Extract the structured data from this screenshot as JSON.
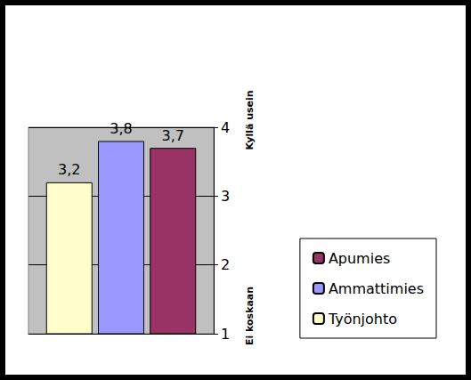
{
  "chart_data": {
    "type": "bar",
    "categories": [
      null
    ],
    "series": [
      {
        "name": "Työnjohto",
        "color": "#FFFFCC",
        "values": [
          3.2
        ],
        "value_labels": [
          "3,2"
        ]
      },
      {
        "name": "Ammattimies",
        "color": "#9999FF",
        "values": [
          3.8
        ],
        "value_labels": [
          "3,8"
        ]
      },
      {
        "name": "Apumies",
        "color": "#993366",
        "values": [
          3.7
        ],
        "value_labels": [
          "3,7"
        ]
      }
    ],
    "ylim": [
      1,
      4
    ],
    "yticks": [
      1,
      2,
      3,
      4
    ],
    "grid": true,
    "legend": "right",
    "data_labels": true,
    "annotations": [
      {
        "text": "Kyllä usein",
        "value": 4
      },
      {
        "text": "Ei koskaan",
        "value": 1
      }
    ]
  }
}
